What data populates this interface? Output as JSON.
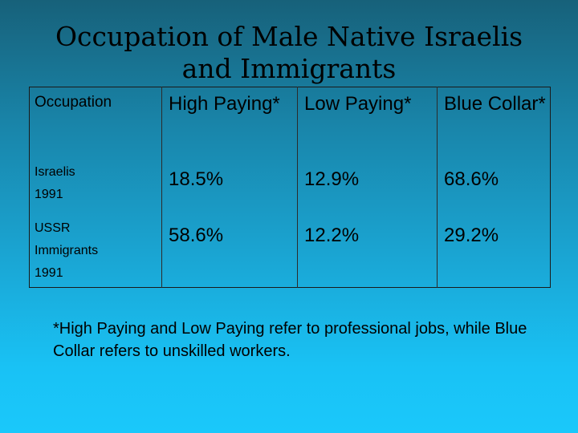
{
  "slide": {
    "title": "Occupation of Male Native Israelis and Immigrants"
  },
  "table": {
    "headers": [
      "Occupation",
      "High Paying*",
      "Low Paying*",
      "Blue Collar*"
    ],
    "rows": [
      {
        "label_line1": "Israelis",
        "label_line2": "1991",
        "label_line3": "",
        "values": [
          "18.5%",
          "12.9%",
          "68.6%"
        ]
      },
      {
        "label_line1": "USSR",
        "label_line2": "Immigrants",
        "label_line3": "1991",
        "values": [
          "58.6%",
          "12.2%",
          "29.2%"
        ]
      }
    ]
  },
  "footnote": "*High Paying and Low Paying refer to professional jobs, while Blue Collar refers to unskilled workers."
}
